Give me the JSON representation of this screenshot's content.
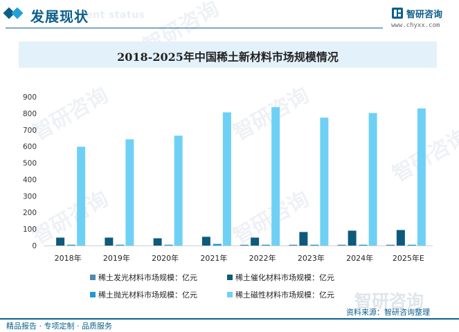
{
  "header": {
    "title": "发展现状",
    "ghost_text": "ent status",
    "brand_name": "智研咨询",
    "brand_url": "www.chyxx.com",
    "brand_color": "#0b5e8a",
    "accent_color": "#1fa0d8",
    "logo_icon": "chyxx-logo-icon"
  },
  "watermark": "智研咨询",
  "source": "资料来源：智研咨询整理",
  "footer": "精品报告 · 专项定制 · 品质服务",
  "chart_data": {
    "type": "bar",
    "title": "2018-2025年中国稀土新材料市场规模情况",
    "xlabel": "",
    "ylabel": "",
    "ylim": [
      0,
      900
    ],
    "yticks": [
      0,
      100,
      200,
      300,
      400,
      500,
      600,
      700,
      800,
      900
    ],
    "grid": false,
    "legend_position": "bottom",
    "categories": [
      "2018年",
      "2019年",
      "2020年",
      "2021年",
      "2022年",
      "2023年",
      "2024年",
      "2025年E"
    ],
    "series": [
      {
        "name": "稀土发光材料市场规模：亿元",
        "color": "#4d8ab1",
        "values": [
          0,
          0,
          0,
          0,
          5,
          5,
          5,
          5
        ]
      },
      {
        "name": "稀土催化材料市场规模：亿元",
        "color": "#0d5a7d",
        "values": [
          48,
          48,
          44,
          53,
          48,
          82,
          90,
          94
        ]
      },
      {
        "name": "稀土抛光材料市场规模：亿元",
        "color": "#1b9ad6",
        "values": [
          5,
          5,
          5,
          10,
          5,
          5,
          5,
          5
        ]
      },
      {
        "name": "稀土磁性材料市场规模：亿元",
        "color": "#6fd0f6",
        "values": [
          598,
          643,
          665,
          806,
          838,
          774,
          802,
          830
        ]
      }
    ]
  }
}
